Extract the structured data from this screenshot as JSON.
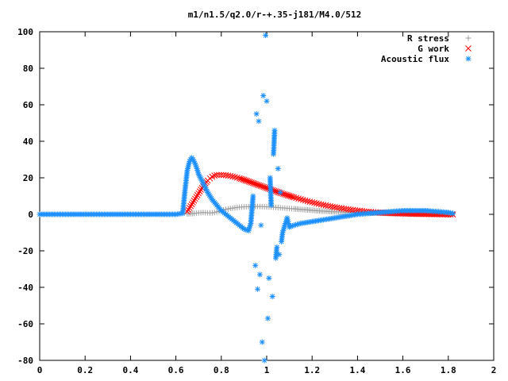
{
  "chart_data": {
    "type": "scatter",
    "title": "m1/n1.5/q2.0/r-+.35-j181/M4.0/512",
    "xlim": [
      0,
      2
    ],
    "ylim": [
      -80,
      100
    ],
    "x_ticks": [
      "0",
      "0.2",
      "0.4",
      "0.6",
      "0.8",
      "1",
      "1.2",
      "1.4",
      "1.6",
      "1.8",
      "2"
    ],
    "y_ticks": [
      "100",
      "80",
      "60",
      "40",
      "20",
      "0",
      "-20",
      "-40",
      "-60",
      "-80"
    ],
    "legend_position": "top-right",
    "grid": false,
    "series": [
      {
        "name": "R stress",
        "marker": "plus",
        "color": "#a0a0a0",
        "points": [
          [
            0.65,
            0.2
          ],
          [
            0.68,
            0.5
          ],
          [
            0.7,
            0.8
          ],
          [
            0.72,
            1.0
          ],
          [
            0.74,
            0.8
          ],
          [
            0.76,
            0.8
          ],
          [
            0.78,
            1.3
          ],
          [
            0.8,
            2.0
          ],
          [
            0.82,
            2.7
          ],
          [
            0.84,
            3.2
          ],
          [
            0.86,
            3.6
          ],
          [
            0.88,
            3.9
          ],
          [
            0.9,
            4.1
          ],
          [
            0.92,
            4.2
          ],
          [
            0.94,
            4.3
          ],
          [
            0.96,
            4.3
          ],
          [
            0.98,
            4.2
          ],
          [
            1.0,
            4.1
          ],
          [
            1.02,
            4.0
          ],
          [
            1.04,
            3.8
          ],
          [
            1.06,
            3.6
          ],
          [
            1.08,
            3.4
          ],
          [
            1.1,
            3.2
          ],
          [
            1.12,
            3.0
          ],
          [
            1.15,
            2.7
          ],
          [
            1.18,
            2.4
          ],
          [
            1.21,
            2.1
          ],
          [
            1.24,
            1.8
          ],
          [
            1.27,
            1.6
          ],
          [
            1.3,
            1.4
          ],
          [
            1.34,
            1.2
          ],
          [
            1.38,
            1.0
          ],
          [
            1.42,
            0.8
          ],
          [
            1.46,
            0.7
          ],
          [
            1.5,
            0.6
          ],
          [
            1.55,
            0.5
          ],
          [
            1.6,
            0.4
          ],
          [
            1.65,
            0.3
          ],
          [
            1.7,
            0.3
          ],
          [
            1.75,
            0.2
          ],
          [
            1.8,
            0.2
          ],
          [
            1.82,
            0.2
          ]
        ]
      },
      {
        "name": "G work",
        "marker": "cross",
        "color": "#ff0000",
        "points": [
          [
            0.65,
            1.5
          ],
          [
            0.66,
            3.5
          ],
          [
            0.67,
            5.5
          ],
          [
            0.68,
            7.5
          ],
          [
            0.69,
            9.5
          ],
          [
            0.7,
            11.5
          ],
          [
            0.71,
            13.5
          ],
          [
            0.72,
            15.3
          ],
          [
            0.73,
            17.0
          ],
          [
            0.74,
            18.5
          ],
          [
            0.75,
            19.7
          ],
          [
            0.76,
            20.6
          ],
          [
            0.77,
            21.2
          ],
          [
            0.78,
            21.5
          ],
          [
            0.79,
            21.6
          ],
          [
            0.8,
            21.6
          ],
          [
            0.82,
            21.4
          ],
          [
            0.84,
            21.0
          ],
          [
            0.86,
            20.4
          ],
          [
            0.88,
            19.7
          ],
          [
            0.9,
            18.9
          ],
          [
            0.92,
            18.0
          ],
          [
            0.94,
            17.1
          ],
          [
            0.96,
            16.2
          ],
          [
            0.98,
            15.3
          ],
          [
            1.0,
            14.4
          ],
          [
            1.02,
            13.5
          ],
          [
            1.04,
            12.6
          ],
          [
            1.06,
            11.7
          ],
          [
            1.08,
            10.9
          ],
          [
            1.1,
            10.1
          ],
          [
            1.12,
            9.3
          ],
          [
            1.14,
            8.6
          ],
          [
            1.16,
            7.9
          ],
          [
            1.18,
            7.2
          ],
          [
            1.2,
            6.6
          ],
          [
            1.22,
            6.0
          ],
          [
            1.24,
            5.4
          ],
          [
            1.26,
            4.9
          ],
          [
            1.28,
            4.4
          ],
          [
            1.3,
            3.9
          ],
          [
            1.32,
            3.5
          ],
          [
            1.34,
            3.1
          ],
          [
            1.36,
            2.7
          ],
          [
            1.38,
            2.4
          ],
          [
            1.4,
            2.1
          ],
          [
            1.42,
            1.8
          ],
          [
            1.44,
            1.5
          ],
          [
            1.46,
            1.3
          ],
          [
            1.48,
            1.1
          ],
          [
            1.5,
            0.9
          ],
          [
            1.55,
            0.6
          ],
          [
            1.6,
            0.4
          ],
          [
            1.65,
            0.2
          ],
          [
            1.7,
            0.1
          ],
          [
            1.75,
            0.0
          ],
          [
            1.8,
            -0.1
          ],
          [
            1.82,
            -0.1
          ]
        ]
      },
      {
        "name": "Acoustic flux",
        "marker": "star",
        "color": "#1e90ff",
        "points": [
          [
            0.0,
            0
          ],
          [
            0.05,
            0
          ],
          [
            0.1,
            0
          ],
          [
            0.15,
            0
          ],
          [
            0.2,
            0
          ],
          [
            0.25,
            0
          ],
          [
            0.3,
            0
          ],
          [
            0.35,
            0
          ],
          [
            0.4,
            0
          ],
          [
            0.45,
            0
          ],
          [
            0.5,
            0
          ],
          [
            0.55,
            0
          ],
          [
            0.6,
            0
          ],
          [
            0.63,
            0.5
          ],
          [
            0.64,
            13
          ],
          [
            0.65,
            24
          ],
          [
            0.66,
            29
          ],
          [
            0.67,
            31
          ],
          [
            0.68,
            29
          ],
          [
            0.69,
            26
          ],
          [
            0.7,
            22
          ],
          [
            0.72,
            17
          ],
          [
            0.74,
            12
          ],
          [
            0.76,
            8
          ],
          [
            0.78,
            5
          ],
          [
            0.8,
            2
          ],
          [
            0.82,
            0
          ],
          [
            0.84,
            -2
          ],
          [
            0.86,
            -4
          ],
          [
            0.88,
            -6
          ],
          [
            0.9,
            -8
          ],
          [
            0.92,
            -9
          ],
          [
            0.93,
            -5
          ],
          [
            0.94,
            10
          ],
          [
            0.95,
            -28
          ],
          [
            0.955,
            55
          ],
          [
            0.96,
            -41
          ],
          [
            0.965,
            51
          ],
          [
            0.97,
            -33
          ],
          [
            0.975,
            -6
          ],
          [
            0.98,
            -70
          ],
          [
            0.985,
            65
          ],
          [
            0.99,
            -80
          ],
          [
            0.995,
            98
          ],
          [
            1.0,
            62
          ],
          [
            1.005,
            -57
          ],
          [
            1.01,
            -35
          ],
          [
            1.015,
            20
          ],
          [
            1.02,
            5
          ],
          [
            1.025,
            -45
          ],
          [
            1.03,
            33
          ],
          [
            1.035,
            46
          ],
          [
            1.04,
            -24
          ],
          [
            1.045,
            -18
          ],
          [
            1.05,
            25
          ],
          [
            1.055,
            -22
          ],
          [
            1.06,
            12
          ],
          [
            1.065,
            -15
          ],
          [
            1.07,
            -10
          ],
          [
            1.08,
            -6
          ],
          [
            1.09,
            -2
          ],
          [
            1.1,
            -7
          ],
          [
            1.12,
            -6
          ],
          [
            1.15,
            -5
          ],
          [
            1.2,
            -4
          ],
          [
            1.25,
            -3
          ],
          [
            1.3,
            -2
          ],
          [
            1.35,
            -1
          ],
          [
            1.4,
            0
          ],
          [
            1.45,
            0.5
          ],
          [
            1.5,
            1
          ],
          [
            1.55,
            1.5
          ],
          [
            1.6,
            2
          ],
          [
            1.65,
            2
          ],
          [
            1.7,
            2
          ],
          [
            1.75,
            1.5
          ],
          [
            1.8,
            1
          ],
          [
            1.82,
            0.5
          ]
        ]
      }
    ]
  }
}
